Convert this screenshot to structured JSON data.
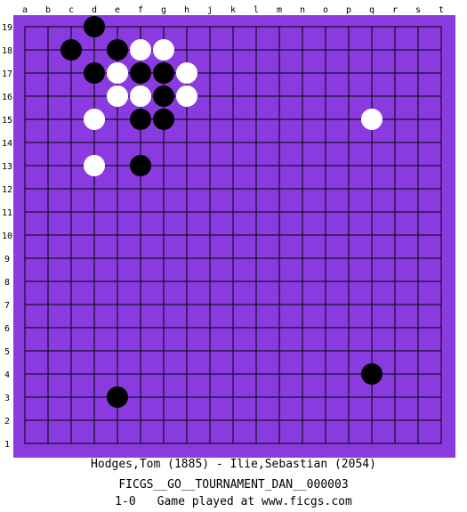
{
  "board": {
    "size": 19,
    "colors": {
      "background": "#8a3be0",
      "lines": "#000000",
      "black_stone": "#000000",
      "white_stone": "#ffffff"
    },
    "column_labels": [
      "a",
      "b",
      "c",
      "d",
      "e",
      "f",
      "g",
      "h",
      "j",
      "k",
      "l",
      "m",
      "n",
      "o",
      "p",
      "q",
      "r",
      "s",
      "t"
    ],
    "row_labels": [
      "19",
      "18",
      "17",
      "16",
      "15",
      "14",
      "13",
      "12",
      "11",
      "10",
      "9",
      "8",
      "7",
      "6",
      "5",
      "4",
      "3",
      "2",
      "1"
    ],
    "stones": [
      {
        "color": "black",
        "point": "d19"
      },
      {
        "color": "black",
        "point": "c18"
      },
      {
        "color": "black",
        "point": "e18"
      },
      {
        "color": "white",
        "point": "f18"
      },
      {
        "color": "white",
        "point": "g18"
      },
      {
        "color": "black",
        "point": "d17"
      },
      {
        "color": "white",
        "point": "e17"
      },
      {
        "color": "black",
        "point": "f17"
      },
      {
        "color": "black",
        "point": "g17"
      },
      {
        "color": "white",
        "point": "h17"
      },
      {
        "color": "white",
        "point": "e16"
      },
      {
        "color": "white",
        "point": "f16"
      },
      {
        "color": "black",
        "point": "g16"
      },
      {
        "color": "white",
        "point": "h16"
      },
      {
        "color": "white",
        "point": "d15"
      },
      {
        "color": "black",
        "point": "f15"
      },
      {
        "color": "black",
        "point": "g15"
      },
      {
        "color": "white",
        "point": "q15"
      },
      {
        "color": "white",
        "point": "d13"
      },
      {
        "color": "black",
        "point": "f13"
      },
      {
        "color": "black",
        "point": "q4"
      },
      {
        "color": "black",
        "point": "e3"
      }
    ]
  },
  "caption": {
    "players": "Hodges,Tom (1885) - Ilie,Sebastian (2054)",
    "tournament": "FICGS__GO__TOURNAMENT_DAN__000003",
    "result": "1-0",
    "site": "Game played at www.ficgs.com"
  }
}
